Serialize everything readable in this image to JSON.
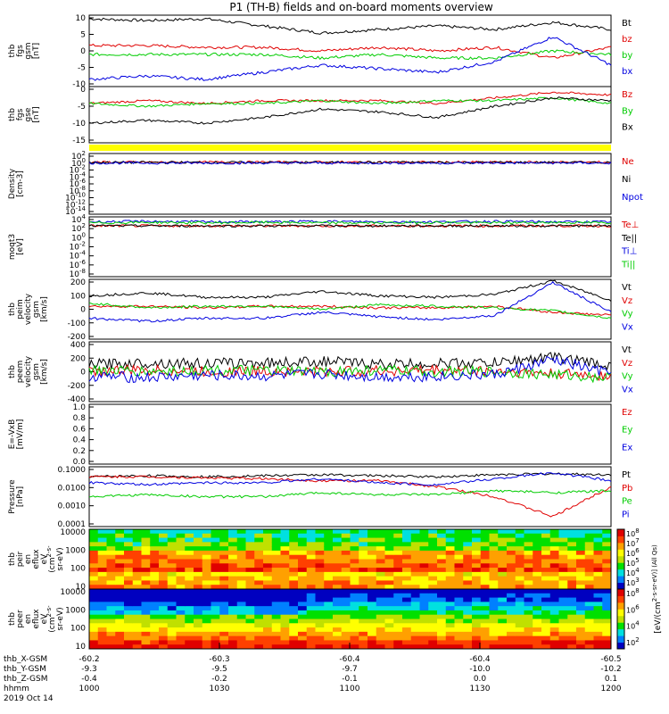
{
  "chart_data": {
    "type": "line",
    "title": "P1 (TH-B) fields and on-board moments overview",
    "colors": {
      "black": "#000000",
      "red": "#e00000",
      "green": "#00cc00",
      "blue": "#0000e0",
      "yellow": "#ffff00"
    },
    "x": {
      "values": [
        1000,
        1030,
        1100,
        1130,
        1200
      ]
    },
    "ephemeris": {
      "rows": [
        {
          "label": "thb_X-GSM",
          "values": [
            "-60.2",
            "-60.3",
            "-60.4",
            "-60.4",
            "-60.5"
          ]
        },
        {
          "label": "thb_Y-GSM",
          "values": [
            "-9.3",
            "-9.5",
            "-9.7",
            "-10.0",
            "-10.2"
          ]
        },
        {
          "label": "thb_Z-GSM",
          "values": [
            "-0.4",
            "-0.2",
            "-0.1",
            "0.0",
            "0.1"
          ]
        },
        {
          "label": "hhmm",
          "values": [
            "1000",
            "1030",
            "1100",
            "1130",
            "1200"
          ]
        }
      ],
      "date": "2019 Oct 14"
    },
    "panels": [
      {
        "ylabel": [
          "thb",
          "fgs",
          "gsm",
          "[nT]"
        ],
        "ylim": [
          -10,
          10
        ],
        "ticks": [
          "10",
          "5",
          "0",
          "-5",
          "-10"
        ],
        "series": [
          {
            "name": "Bt",
            "color": "black",
            "values": [
              9,
              8.5,
              9,
              7,
              5,
              6,
              7,
              6,
              8,
              6
            ]
          },
          {
            "name": "bz",
            "color": "red",
            "values": [
              1.5,
              1.5,
              1,
              1,
              0,
              1,
              0,
              1,
              -2,
              1
            ]
          },
          {
            "name": "by",
            "color": "green",
            "values": [
              -1,
              -1,
              -1,
              -1,
              -2,
              -1,
              -2,
              -2,
              0,
              -1
            ]
          },
          {
            "name": "bx",
            "color": "blue",
            "values": [
              -8,
              -7,
              -8,
              -6,
              -4,
              -5,
              -6,
              -3,
              4,
              -4
            ]
          }
        ]
      },
      {
        "ylabel": [
          "thb",
          "fgs",
          "gse",
          "[nT]"
        ],
        "ylim": [
          -17,
          3
        ],
        "ticks": [
          "0",
          "-5",
          "-10",
          "-15"
        ],
        "series": [
          {
            "name": "Bz",
            "color": "red",
            "values": [
              -3,
              -2,
              -3,
              -2,
              -2,
              -2,
              -3,
              -1,
              1,
              0
            ]
          },
          {
            "name": "By",
            "color": "green",
            "values": [
              -3,
              -4,
              -3,
              -3,
              -2,
              -3,
              -2,
              -2,
              -1,
              -3
            ]
          },
          {
            "name": "Bx",
            "color": "black",
            "values": [
              -10,
              -9,
              -10,
              -8,
              -5,
              -6,
              -8,
              -4,
              -1,
              -2
            ]
          }
        ]
      },
      {
        "ylabel": [
          "Density",
          "[cm-3]"
        ],
        "log": true,
        "ylim": [
          -14,
          2
        ],
        "ticks": [
          "10^2",
          "10^0",
          "10^-2",
          "10^-4",
          "10^-6",
          "10^-8",
          "10^-10",
          "10^-12",
          "10^-14"
        ],
        "series": [
          {
            "name": "Ne",
            "color": "red",
            "values": [
              -0.3,
              -0.3,
              -0.3,
              -0.3,
              -0.3,
              -0.3,
              -0.3,
              -0.3,
              -0.3,
              -0.3
            ]
          },
          {
            "name": "Ni",
            "color": "black",
            "values": [
              -0.35,
              -0.35,
              -0.35,
              -0.35,
              -0.35,
              -0.35,
              -0.35,
              -0.35,
              -0.35,
              -0.35
            ]
          },
          {
            "name": "Npot",
            "color": "blue",
            "values": [
              -0.5,
              -0.5,
              -0.5,
              -0.5,
              -0.5,
              -0.5,
              -0.5,
              -0.5,
              -0.5,
              -0.5
            ]
          }
        ]
      },
      {
        "ylabel": [
          "moqt3",
          "[eV]"
        ],
        "log": true,
        "ylim": [
          -8,
          4
        ],
        "ticks": [
          "10^4",
          "10^2",
          "10^0",
          "10^-2",
          "10^-4",
          "10^-6",
          "10^-8"
        ],
        "series": [
          {
            "name": "Te⊥",
            "color": "red",
            "values": [
              2.2,
              2.2,
              2.2,
              2.2,
              2.2,
              2.2,
              2.2,
              2.2,
              2.2,
              2.2
            ]
          },
          {
            "name": "Te||",
            "color": "black",
            "values": [
              2.2,
              2.2,
              2.2,
              2.2,
              2.2,
              2.2,
              2.2,
              2.2,
              2.2,
              2.2
            ]
          },
          {
            "name": "Ti⊥",
            "color": "blue",
            "values": [
              3,
              3.1,
              3,
              3,
              3.1,
              3,
              3,
              3.1,
              3,
              3
            ]
          },
          {
            "name": "Ti||",
            "color": "green",
            "values": [
              2.8,
              2.9,
              2.8,
              2.9,
              2.8,
              2.8,
              2.9,
              2.8,
              2.9,
              2.8
            ]
          }
        ]
      },
      {
        "ylabel": [
          "thb",
          "peim",
          "velocity",
          "gsm",
          "[km/s]"
        ],
        "ylim": [
          -200,
          200
        ],
        "ticks": [
          "200",
          "100",
          "0",
          "-100",
          "-200"
        ],
        "series": [
          {
            "name": "Vt",
            "color": "black",
            "values": [
              90,
              110,
              80,
              80,
              120,
              90,
              80,
              100,
              190,
              60
            ]
          },
          {
            "name": "Vz",
            "color": "red",
            "values": [
              20,
              20,
              10,
              20,
              20,
              10,
              10,
              20,
              -20,
              -40
            ]
          },
          {
            "name": "Vy",
            "color": "green",
            "values": [
              40,
              10,
              20,
              20,
              0,
              30,
              20,
              10,
              -10,
              -60
            ]
          },
          {
            "name": "Vx",
            "color": "blue",
            "values": [
              -60,
              -80,
              -60,
              -60,
              -20,
              -50,
              -70,
              -40,
              180,
              -20
            ]
          }
        ]
      },
      {
        "ylabel": [
          "thb",
          "peem",
          "velocity",
          "gsm",
          "[km/s]"
        ],
        "ylim": [
          -400,
          400
        ],
        "ticks": [
          "400",
          "200",
          "0",
          "-200",
          "-400"
        ],
        "series": [
          {
            "name": "Vt",
            "color": "black",
            "values": [
              100,
              120,
              110,
              120,
              140,
              100,
              110,
              120,
              200,
              80
            ]
          },
          {
            "name": "Vz",
            "color": "red",
            "values": [
              10,
              20,
              0,
              10,
              0,
              10,
              20,
              10,
              -30,
              -50
            ]
          },
          {
            "name": "Vy",
            "color": "green",
            "values": [
              20,
              0,
              20,
              10,
              0,
              20,
              0,
              0,
              -40,
              -80
            ]
          },
          {
            "name": "Vx",
            "color": "blue",
            "values": [
              -60,
              -80,
              -50,
              -60,
              -30,
              -70,
              -60,
              -40,
              160,
              -30
            ]
          }
        ]
      },
      {
        "ylabel": [
          "E=-VxB",
          "[mV/m]"
        ],
        "ylim": [
          0,
          1
        ],
        "ticks": [
          "1.0",
          "0.8",
          "0.6",
          "0.4",
          "0.2",
          "0.0"
        ],
        "series": [
          {
            "name": "Ez",
            "color": "red",
            "values": []
          },
          {
            "name": "Ey",
            "color": "green",
            "values": []
          },
          {
            "name": "Ex",
            "color": "blue",
            "values": []
          }
        ]
      },
      {
        "ylabel": [
          "Pressure",
          "[nPa]"
        ],
        "log": true,
        "ylim": [
          -4,
          -1
        ],
        "ticks": [
          "0.1000",
          "0.0100",
          "0.0010",
          "0.0001"
        ],
        "series": [
          {
            "name": "Pt",
            "color": "black",
            "values": [
              -1.5,
              -1.45,
              -1.5,
              -1.45,
              -1.4,
              -1.45,
              -1.5,
              -1.4,
              -1.35,
              -1.4
            ]
          },
          {
            "name": "Pb",
            "color": "red",
            "values": [
              -1.5,
              -1.5,
              -1.55,
              -1.6,
              -1.7,
              -1.7,
              -2,
              -2.5,
              -3.5,
              -2
            ]
          },
          {
            "name": "Pe",
            "color": "green",
            "values": [
              -2.5,
              -2.4,
              -2.5,
              -2.5,
              -2.3,
              -2.4,
              -2.4,
              -2.2,
              -2.3,
              -2.2
            ]
          },
          {
            "name": "Pi",
            "color": "blue",
            "values": [
              -1.8,
              -1.9,
              -1.8,
              -1.8,
              -1.6,
              -1.8,
              -1.9,
              -1.6,
              -1.3,
              -1.7
            ]
          }
        ]
      },
      {
        "ylabel": [
          "thb",
          "peir",
          "en",
          "eflux",
          "eV",
          "(cm^2-s-",
          "sr-eV)"
        ],
        "spectrogram": true,
        "ticks": [
          "10000",
          "1000",
          "100",
          "10"
        ],
        "colorbar": [
          "10^8",
          "10^7",
          "10^6",
          "10^5",
          "10^4",
          "10^3"
        ]
      },
      {
        "ylabel": [
          "thb",
          "peer",
          "en",
          "eflux",
          "eV",
          "(cm^2-s-",
          "sr-eV)"
        ],
        "spectrogram": true,
        "ticks": [
          "10000",
          "1000",
          "100",
          "10"
        ],
        "colorbar": [
          "10^8",
          "10^6",
          "10^4",
          "10^2"
        ]
      }
    ],
    "colorbar_label": "[eV/(cm^2-s-sr-eV)] (All Qs)",
    "grid": false
  }
}
